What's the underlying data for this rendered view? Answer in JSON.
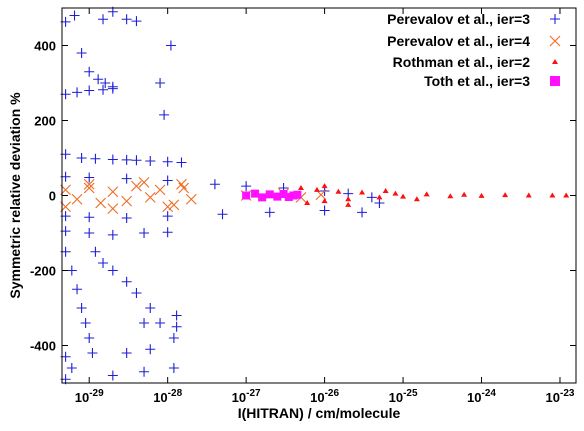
{
  "chart_data": {
    "type": "scatter",
    "xlabel": "I(HITRAN) / cm/molecule",
    "ylabel": "Symmetric relative deviation %",
    "xscale": "log",
    "xlim": [
      4.5e-30,
      1.6e-23
    ],
    "ylim": [
      -500,
      500
    ],
    "x_ticks": [
      {
        "value": 1e-29,
        "label": "10",
        "exp": "-29"
      },
      {
        "value": 1e-28,
        "label": "10",
        "exp": "-28"
      },
      {
        "value": 1e-27,
        "label": "10",
        "exp": "-27"
      },
      {
        "value": 1e-26,
        "label": "10",
        "exp": "-26"
      },
      {
        "value": 1e-25,
        "label": "10",
        "exp": "-25"
      },
      {
        "value": 1e-24,
        "label": "10",
        "exp": "-24"
      },
      {
        "value": 1e-23,
        "label": "10",
        "exp": "-23"
      }
    ],
    "y_ticks": [
      {
        "value": 400,
        "label": "400"
      },
      {
        "value": 200,
        "label": "200"
      },
      {
        "value": 0,
        "label": "0"
      },
      {
        "value": -200,
        "label": "-200"
      },
      {
        "value": -400,
        "label": "-400"
      }
    ],
    "grid": false,
    "legend_position": "top-right",
    "series": [
      {
        "name": "Perevalov et al., ier=3",
        "marker": "plus",
        "color": "#1f1fd6",
        "points": [
          [
            5e-30,
            463
          ],
          [
            6.5e-30,
            480
          ],
          [
            8e-30,
            380
          ],
          [
            1e-29,
            330
          ],
          [
            1.3e-29,
            310
          ],
          [
            1.6e-29,
            300
          ],
          [
            2e-29,
            290
          ],
          [
            5e-30,
            270
          ],
          [
            7e-30,
            275
          ],
          [
            1e-29,
            280
          ],
          [
            1.5e-29,
            282
          ],
          [
            2e-29,
            285
          ],
          [
            1.5e-29,
            470
          ],
          [
            2e-29,
            490
          ],
          [
            3e-29,
            470
          ],
          [
            4e-29,
            465
          ],
          [
            8e-29,
            300
          ],
          [
            1.1e-28,
            400
          ],
          [
            9e-29,
            215
          ],
          [
            5e-30,
            110
          ],
          [
            8e-30,
            100
          ],
          [
            1.2e-29,
            98
          ],
          [
            2e-29,
            96
          ],
          [
            3e-29,
            95
          ],
          [
            4e-29,
            94
          ],
          [
            6e-29,
            92
          ],
          [
            1e-28,
            90
          ],
          [
            1.5e-28,
            88
          ],
          [
            5e-30,
            50
          ],
          [
            1e-29,
            48
          ],
          [
            3e-29,
            45
          ],
          [
            1e-28,
            40
          ],
          [
            4e-28,
            30
          ],
          [
            1e-27,
            25
          ],
          [
            3e-27,
            20
          ],
          [
            1e-26,
            12
          ],
          [
            2e-26,
            5
          ],
          [
            4e-26,
            -5
          ],
          [
            5e-26,
            -20
          ],
          [
            5e-30,
            -55
          ],
          [
            1e-29,
            -58
          ],
          [
            3e-29,
            -60
          ],
          [
            1e-28,
            -55
          ],
          [
            5e-28,
            -50
          ],
          [
            2e-27,
            -45
          ],
          [
            1e-26,
            -40
          ],
          [
            3e-26,
            -45
          ],
          [
            5e-30,
            -95
          ],
          [
            1e-29,
            -100
          ],
          [
            2e-29,
            -105
          ],
          [
            5e-29,
            -100
          ],
          [
            1e-28,
            -98
          ],
          [
            5e-30,
            -150
          ],
          [
            6e-30,
            -200
          ],
          [
            7e-30,
            -250
          ],
          [
            8e-30,
            -300
          ],
          [
            9e-30,
            -340
          ],
          [
            1e-29,
            -380
          ],
          [
            1.1e-29,
            -420
          ],
          [
            1.2e-29,
            -150
          ],
          [
            1.5e-29,
            -180
          ],
          [
            2e-29,
            -200
          ],
          [
            3e-29,
            -230
          ],
          [
            4e-29,
            -260
          ],
          [
            6e-29,
            -300
          ],
          [
            8e-29,
            -340
          ],
          [
            1.2e-28,
            -380
          ],
          [
            1.2e-28,
            -460
          ],
          [
            1.3e-28,
            -320
          ],
          [
            1.3e-28,
            -350
          ],
          [
            3e-29,
            -420
          ],
          [
            5e-29,
            -340
          ],
          [
            6e-29,
            -410
          ],
          [
            5e-29,
            -470
          ],
          [
            2e-29,
            -480
          ],
          [
            5e-30,
            -430
          ],
          [
            6e-30,
            -460
          ],
          [
            5e-30,
            -490
          ]
        ]
      },
      {
        "name": "Perevalov et al., ier=4",
        "marker": "cross",
        "color": "#f26a22",
        "points": [
          [
            5e-30,
            15
          ],
          [
            7e-30,
            -10
          ],
          [
            1e-29,
            20
          ],
          [
            1.4e-29,
            -20
          ],
          [
            2e-29,
            10
          ],
          [
            3e-29,
            -15
          ],
          [
            4e-29,
            25
          ],
          [
            6e-29,
            -5
          ],
          [
            8e-29,
            15
          ],
          [
            1.2e-28,
            -25
          ],
          [
            1.6e-28,
            20
          ],
          [
            2e-28,
            -10
          ],
          [
            5e-30,
            -30
          ],
          [
            1e-29,
            30
          ],
          [
            2e-29,
            -35
          ],
          [
            5e-29,
            35
          ],
          [
            1e-28,
            -30
          ],
          [
            1.5e-28,
            30
          ],
          [
            1e-27,
            0
          ],
          [
            3e-27,
            5
          ],
          [
            5e-27,
            -5
          ],
          [
            9e-27,
            2
          ]
        ]
      },
      {
        "name": "Rothman et al., ier=2",
        "marker": "triangle",
        "color": "#ff1010",
        "points": [
          [
            5e-27,
            20
          ],
          [
            6e-27,
            -20
          ],
          [
            8e-27,
            15
          ],
          [
            1e-26,
            -15
          ],
          [
            1.5e-26,
            10
          ],
          [
            2e-26,
            -10
          ],
          [
            3e-26,
            8
          ],
          [
            5e-26,
            -5
          ],
          [
            8e-26,
            5
          ],
          [
            1e-25,
            -3
          ],
          [
            2e-25,
            3
          ],
          [
            4e-25,
            -2
          ],
          [
            6e-25,
            2
          ],
          [
            1e-24,
            -1
          ],
          [
            2e-24,
            1
          ],
          [
            4e-24,
            0
          ],
          [
            8e-24,
            0
          ],
          [
            1.2e-23,
            0
          ],
          [
            1e-26,
            25
          ],
          [
            2e-26,
            -25
          ],
          [
            6e-26,
            12
          ],
          [
            1.5e-25,
            -10
          ]
        ]
      },
      {
        "name": "Toth et al., ier=3",
        "marker": "square",
        "color": "#ff10ff",
        "points": [
          [
            1e-27,
            0
          ],
          [
            1.3e-27,
            5
          ],
          [
            1.6e-27,
            -5
          ],
          [
            2e-27,
            3
          ],
          [
            2.5e-27,
            -3
          ],
          [
            3e-27,
            4
          ],
          [
            3.5e-27,
            -4
          ],
          [
            4e-27,
            0
          ],
          [
            4.5e-27,
            2
          ]
        ]
      }
    ]
  }
}
